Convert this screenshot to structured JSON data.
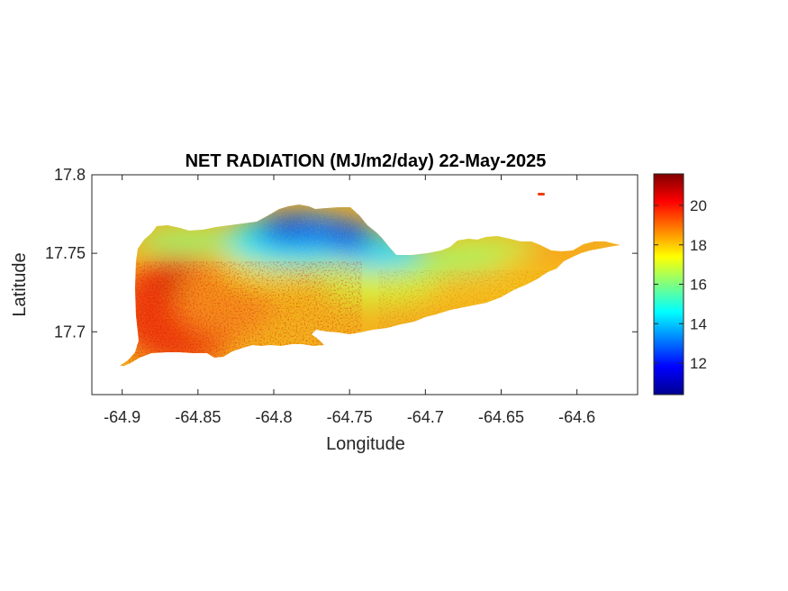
{
  "chart_data": {
    "type": "heatmap",
    "title": "NET RADIATION (MJ/m2/day) 22-May-2025",
    "xlabel": "Longitude",
    "ylabel": "Latitude",
    "xlim": [
      -64.92,
      -64.56
    ],
    "ylim": [
      17.66,
      17.8
    ],
    "xticks": [
      -64.9,
      -64.85,
      -64.8,
      -64.75,
      -64.7,
      -64.65,
      -64.6
    ],
    "xtick_labels": [
      "-64.9",
      "-64.85",
      "-64.8",
      "-64.75",
      "-64.7",
      "-64.65",
      "-64.6"
    ],
    "yticks": [
      17.7,
      17.75,
      17.8
    ],
    "ytick_labels": [
      "17.7",
      "17.75",
      "17.8"
    ],
    "colorbar": {
      "colormap": "jet",
      "range": [
        10.4,
        21.6
      ],
      "ticks": [
        12,
        14,
        16,
        18,
        20
      ],
      "tick_labels": [
        "12",
        "14",
        "16",
        "18",
        "20"
      ]
    },
    "field_summary": {
      "central_north_min": 11.5,
      "southwest_max": 21,
      "east_typical": 18
    }
  }
}
